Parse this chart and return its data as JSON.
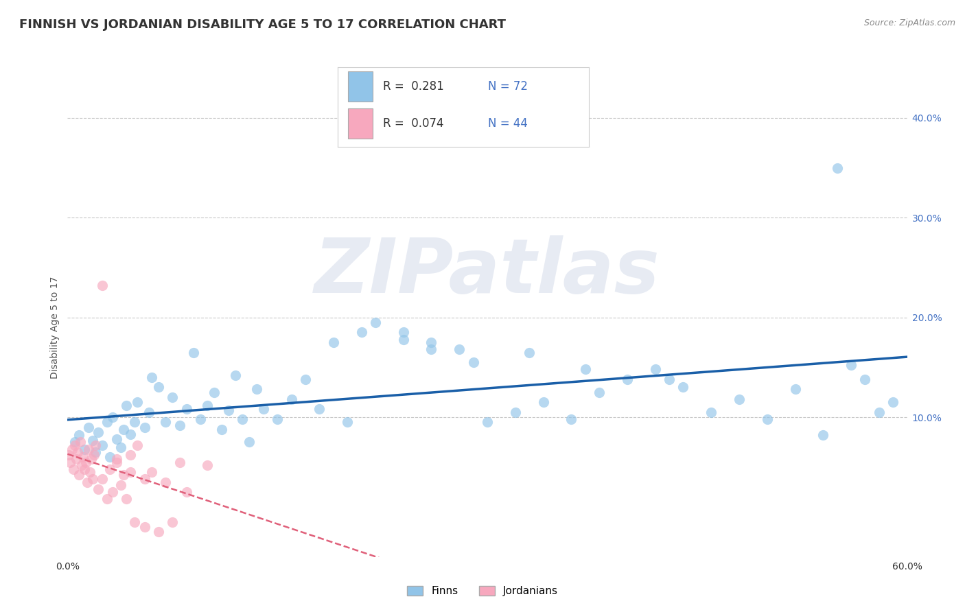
{
  "title": "FINNISH VS JORDANIAN DISABILITY AGE 5 TO 17 CORRELATION CHART",
  "source_text": "Source: ZipAtlas.com",
  "ylabel": "Disability Age 5 to 17",
  "xlim": [
    0.0,
    0.6
  ],
  "ylim": [
    -0.04,
    0.42
  ],
  "xtick_labels": [
    "0.0%",
    "",
    "",
    "",
    "",
    "",
    "60.0%"
  ],
  "xtick_vals": [
    0.0,
    0.1,
    0.2,
    0.3,
    0.4,
    0.5,
    0.6
  ],
  "ytick_labels": [
    "10.0%",
    "20.0%",
    "30.0%",
    "40.0%"
  ],
  "ytick_vals": [
    0.1,
    0.2,
    0.3,
    0.4
  ],
  "finns_R": 0.281,
  "finns_N": 72,
  "jordanians_R": 0.074,
  "jordanians_N": 44,
  "finns_color": "#91c4e8",
  "jordanians_color": "#f7a8be",
  "finns_line_color": "#1a5fa8",
  "jordanians_line_color": "#e0607a",
  "background_color": "#ffffff",
  "grid_color": "#c8c8c8",
  "watermark_text": "ZIPatlas",
  "legend_label_finns": "Finns",
  "legend_label_jordanians": "Jordanians",
  "finns_x": [
    0.005,
    0.008,
    0.012,
    0.015,
    0.018,
    0.02,
    0.022,
    0.025,
    0.028,
    0.03,
    0.032,
    0.035,
    0.038,
    0.04,
    0.042,
    0.045,
    0.048,
    0.05,
    0.055,
    0.058,
    0.06,
    0.065,
    0.07,
    0.075,
    0.08,
    0.085,
    0.09,
    0.095,
    0.1,
    0.105,
    0.11,
    0.115,
    0.12,
    0.125,
    0.13,
    0.135,
    0.14,
    0.15,
    0.16,
    0.17,
    0.18,
    0.2,
    0.22,
    0.24,
    0.26,
    0.28,
    0.3,
    0.32,
    0.34,
    0.36,
    0.38,
    0.4,
    0.42,
    0.44,
    0.46,
    0.48,
    0.5,
    0.52,
    0.54,
    0.56,
    0.57,
    0.58,
    0.59,
    0.24,
    0.19,
    0.21,
    0.29,
    0.33,
    0.26,
    0.37,
    0.43,
    0.55
  ],
  "finns_y": [
    0.075,
    0.082,
    0.068,
    0.09,
    0.077,
    0.065,
    0.085,
    0.072,
    0.095,
    0.06,
    0.1,
    0.078,
    0.07,
    0.088,
    0.112,
    0.083,
    0.095,
    0.115,
    0.09,
    0.105,
    0.14,
    0.13,
    0.095,
    0.12,
    0.092,
    0.108,
    0.165,
    0.098,
    0.112,
    0.125,
    0.088,
    0.107,
    0.142,
    0.098,
    0.075,
    0.128,
    0.108,
    0.098,
    0.118,
    0.138,
    0.108,
    0.095,
    0.195,
    0.185,
    0.175,
    0.168,
    0.095,
    0.105,
    0.115,
    0.098,
    0.125,
    0.138,
    0.148,
    0.13,
    0.105,
    0.118,
    0.098,
    0.128,
    0.082,
    0.152,
    0.138,
    0.105,
    0.115,
    0.178,
    0.175,
    0.185,
    0.155,
    0.165,
    0.168,
    0.148,
    0.138,
    0.35
  ],
  "jordanians_x": [
    0.001,
    0.002,
    0.003,
    0.004,
    0.005,
    0.006,
    0.007,
    0.008,
    0.009,
    0.01,
    0.011,
    0.012,
    0.013,
    0.014,
    0.015,
    0.016,
    0.017,
    0.018,
    0.019,
    0.02,
    0.022,
    0.025,
    0.028,
    0.03,
    0.032,
    0.035,
    0.038,
    0.04,
    0.042,
    0.045,
    0.048,
    0.05,
    0.055,
    0.06,
    0.065,
    0.07,
    0.075,
    0.08,
    0.085,
    0.1,
    0.025,
    0.035,
    0.045,
    0.055
  ],
  "jordanians_y": [
    0.062,
    0.055,
    0.068,
    0.048,
    0.072,
    0.058,
    0.065,
    0.042,
    0.075,
    0.052,
    0.06,
    0.048,
    0.055,
    0.035,
    0.068,
    0.045,
    0.058,
    0.038,
    0.062,
    0.072,
    0.028,
    0.038,
    0.018,
    0.048,
    0.025,
    0.058,
    0.032,
    0.042,
    0.018,
    0.062,
    -0.005,
    0.072,
    -0.01,
    0.045,
    -0.015,
    0.035,
    -0.005,
    0.055,
    0.025,
    0.052,
    0.232,
    0.055,
    0.045,
    0.038
  ]
}
